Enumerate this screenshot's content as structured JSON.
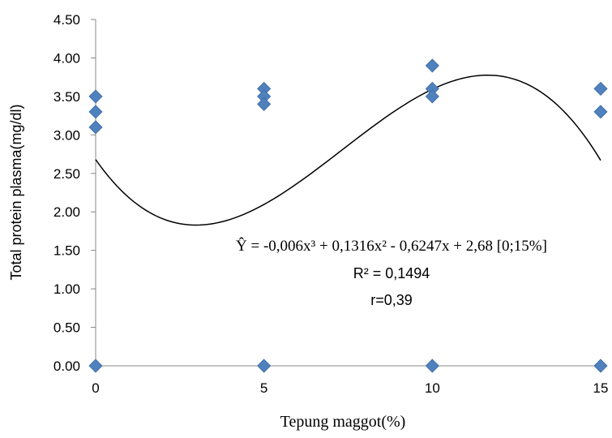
{
  "chart_data": {
    "type": "scatter",
    "xlabel": "Tepung maggot(%)",
    "ylabel": "Total protein plasma(mg/dl)",
    "xlim": [
      0,
      15
    ],
    "ylim": [
      0,
      4.5
    ],
    "x_ticks": [
      "0",
      "5",
      "10",
      "15"
    ],
    "y_ticks": [
      "0.00",
      "0.50",
      "1.00",
      "1.50",
      "2.00",
      "2.50",
      "3.00",
      "3.50",
      "4.00",
      "4.50"
    ],
    "grid": false,
    "marker_color": "#4F81BD",
    "points": [
      {
        "x": 0,
        "y": 3.5
      },
      {
        "x": 0,
        "y": 3.3
      },
      {
        "x": 0,
        "y": 3.1
      },
      {
        "x": 0,
        "y": 0
      },
      {
        "x": 5,
        "y": 3.6
      },
      {
        "x": 5,
        "y": 3.5
      },
      {
        "x": 5,
        "y": 3.4
      },
      {
        "x": 5,
        "y": 0
      },
      {
        "x": 10,
        "y": 3.9
      },
      {
        "x": 10,
        "y": 3.6
      },
      {
        "x": 10,
        "y": 3.5
      },
      {
        "x": 10,
        "y": 0
      },
      {
        "x": 15,
        "y": 3.6
      },
      {
        "x": 15,
        "y": 3.3
      },
      {
        "x": 15,
        "y": 0
      }
    ],
    "trendline": {
      "type": "polynomial-3",
      "coefficients": [
        -0.006,
        0.1316,
        -0.6247,
        2.68
      ],
      "equation": "Ŷ = -0,006x³ + 0,1316x² - 0,6247x + 2,68 [0;15%]",
      "r_squared": "R² = 0,1494",
      "r": "r=0,39"
    }
  }
}
